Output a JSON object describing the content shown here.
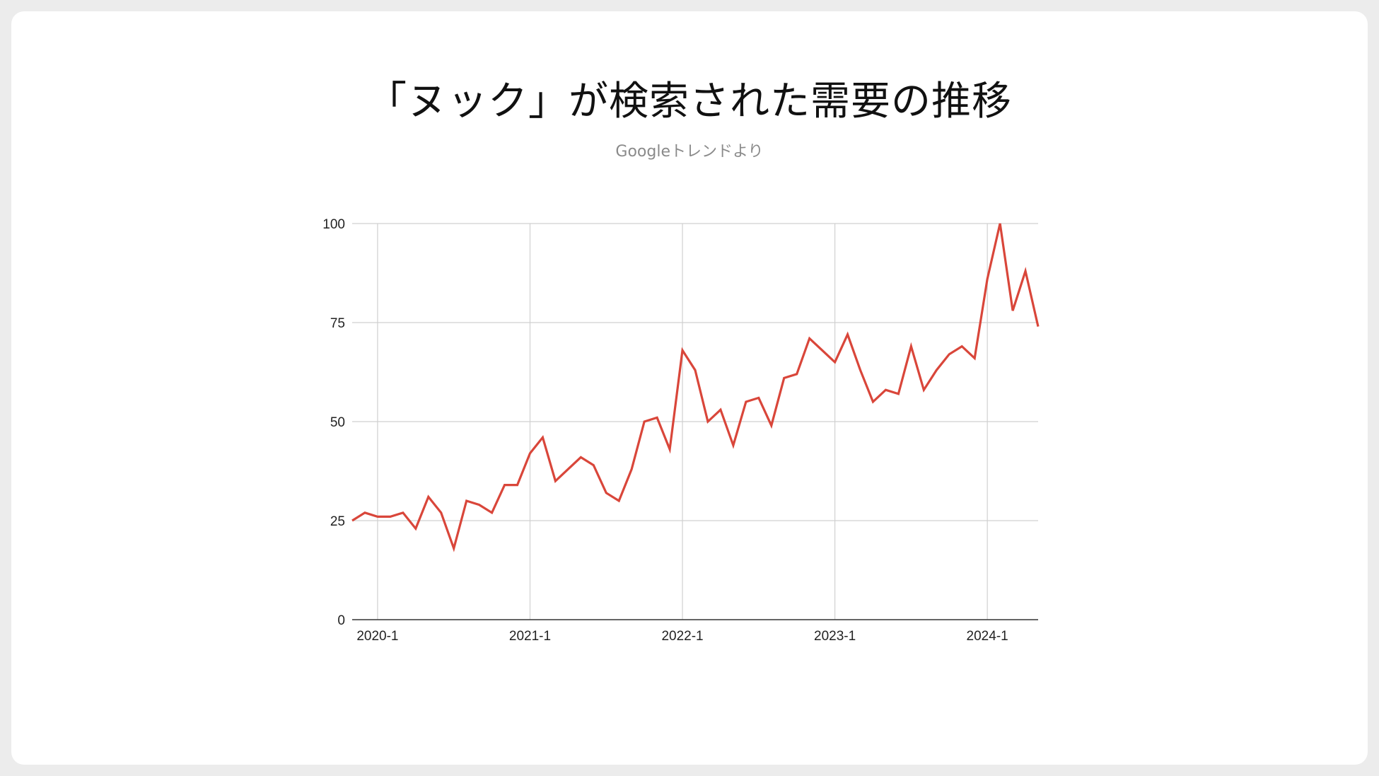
{
  "chart_data": {
    "type": "line",
    "title": "「ヌック」が検索された需要の推移",
    "subtitle": "Googleトレンドより",
    "xlabel": "",
    "ylabel": "",
    "ylim": [
      0,
      100
    ],
    "yticks": [
      "0",
      "25",
      "50",
      "75",
      "100"
    ],
    "xticks": [
      "2020-1",
      "2021-1",
      "2022-1",
      "2023-1",
      "2024-1"
    ],
    "grid": true,
    "legend": "none",
    "series": [
      {
        "color": "#d9463a",
        "x": [
          "2019-11",
          "2019-12",
          "2020-1",
          "2020-2",
          "2020-3",
          "2020-4",
          "2020-5",
          "2020-6",
          "2020-7",
          "2020-8",
          "2020-9",
          "2020-10",
          "2020-11",
          "2020-12",
          "2021-1",
          "2021-2",
          "2021-3",
          "2021-4",
          "2021-5",
          "2021-6",
          "2021-7",
          "2021-8",
          "2021-9",
          "2021-10",
          "2021-11",
          "2021-12",
          "2022-1",
          "2022-2",
          "2022-3",
          "2022-4",
          "2022-5",
          "2022-6",
          "2022-7",
          "2022-8",
          "2022-9",
          "2022-10",
          "2022-11",
          "2022-12",
          "2023-1",
          "2023-2",
          "2023-3",
          "2023-4",
          "2023-5",
          "2023-6",
          "2023-7",
          "2023-8",
          "2023-9",
          "2023-10",
          "2023-11",
          "2023-12",
          "2024-1",
          "2024-2",
          "2024-3",
          "2024-4",
          "2024-5"
        ],
        "values": [
          25,
          27,
          26,
          26,
          27,
          23,
          31,
          27,
          18,
          30,
          29,
          27,
          34,
          34,
          42,
          46,
          35,
          38,
          41,
          39,
          32,
          30,
          38,
          50,
          51,
          43,
          68,
          63,
          50,
          53,
          44,
          55,
          56,
          49,
          61,
          62,
          71,
          68,
          65,
          72,
          63,
          55,
          58,
          57,
          69,
          58,
          63,
          67,
          69,
          66,
          86,
          100,
          78,
          88,
          74
        ]
      }
    ]
  }
}
